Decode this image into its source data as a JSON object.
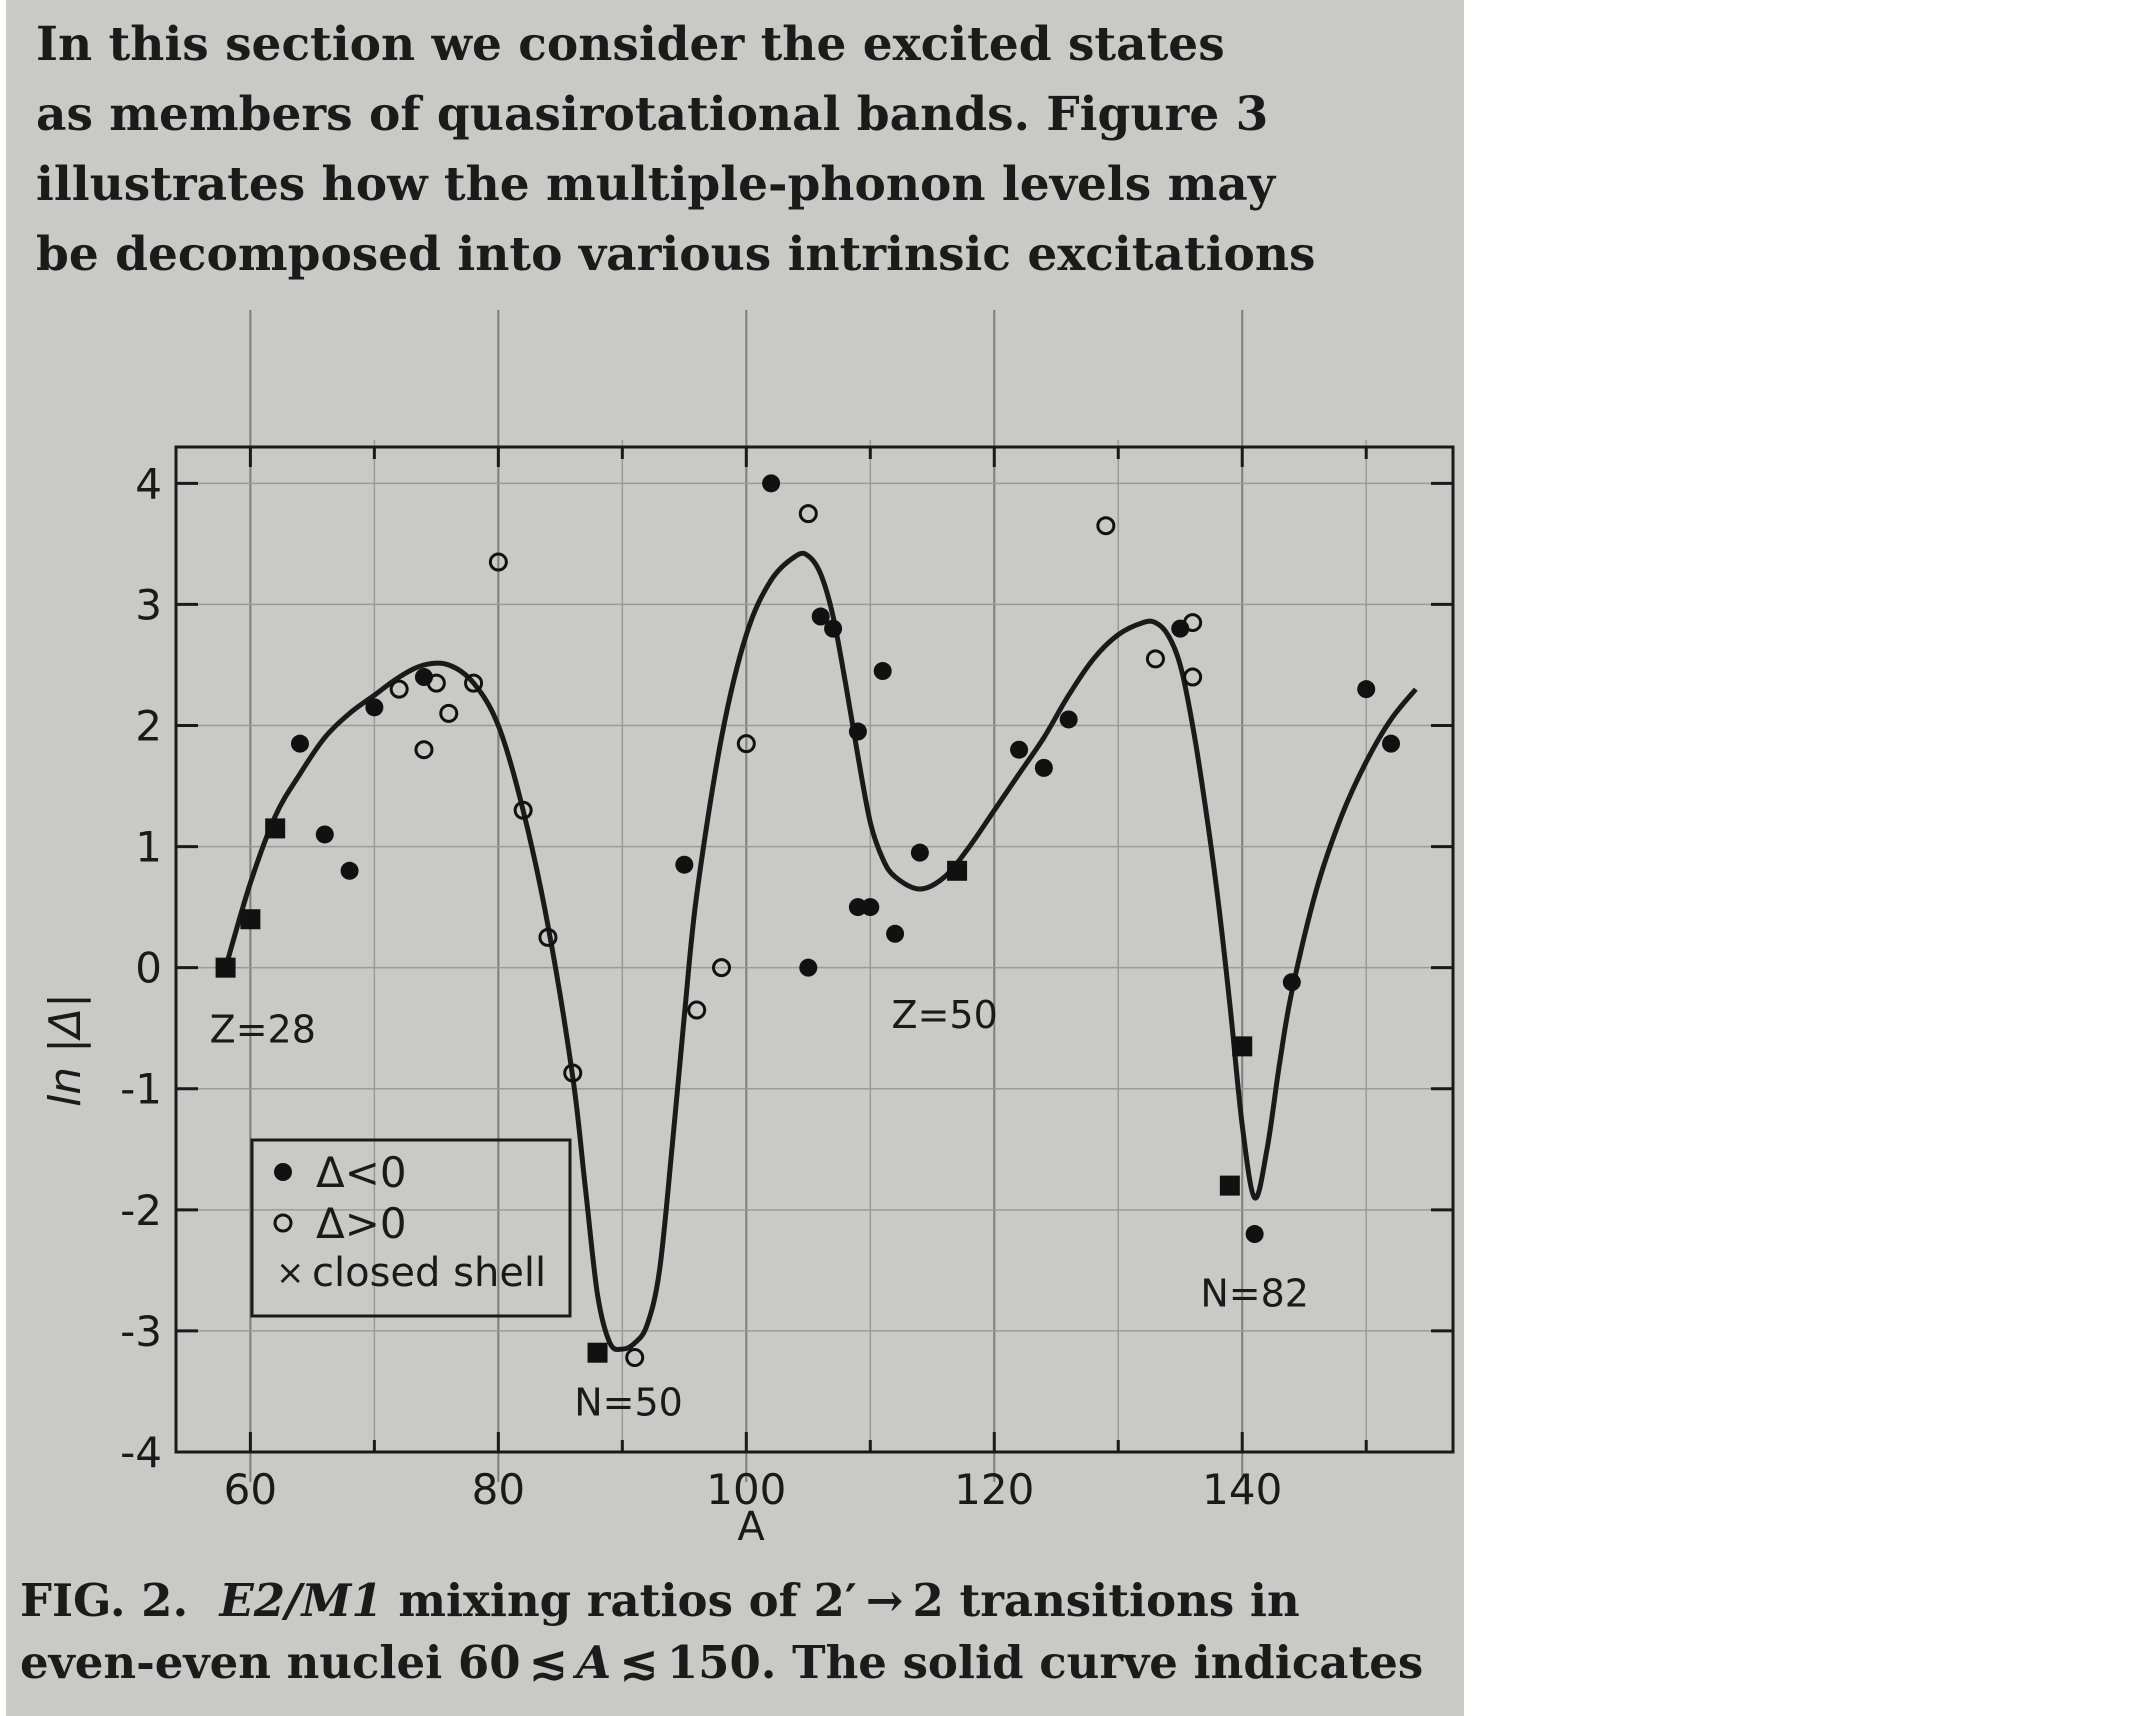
{
  "body_text": {
    "lines": [
      "In this section we consider the excited states",
      "as members of quasirotational bands.  Figure 3",
      "illustrates how the multiple-phonon levels may",
      "be decomposed into various intrinsic excitations"
    ]
  },
  "caption": {
    "label": "FIG. 2.",
    "title_em": "E2/M1",
    "title_rest": " mixing ratios of 2′ → 2 transitions in",
    "line2_start": "even-even nuclei 60 ≲ ",
    "line2_em": "A",
    "line2_end": " ≲ 150.  The solid curve indicates"
  },
  "chart_data": {
    "type": "scatter",
    "xlabel": "A",
    "ylabel": "ln |Δ|",
    "xlim": [
      54,
      157
    ],
    "ylim": [
      -4,
      4.3
    ],
    "x_ticks": [
      60,
      80,
      100,
      120,
      140
    ],
    "y_ticks": [
      4,
      3,
      2,
      1,
      0,
      -1,
      -2,
      -3,
      -4
    ],
    "grid": true,
    "legend": {
      "placement": "lower-left",
      "entries": [
        {
          "marker": "filled",
          "label": "Δ<0"
        },
        {
          "marker": "open",
          "label": "Δ>0"
        },
        {
          "marker": "cross",
          "label": "closed shell"
        }
      ]
    },
    "annotations": [
      {
        "text": "Z=28",
        "x": 61,
        "y": -0.62
      },
      {
        "text": "Z=50",
        "x": 116,
        "y": -0.5
      },
      {
        "text": "N=50",
        "x": 90.5,
        "y": -3.7
      },
      {
        "text": "N=82",
        "x": 141,
        "y": -2.8
      }
    ],
    "series": [
      {
        "name": "Δ<0",
        "marker": "filled",
        "x": [
          64,
          66,
          68,
          70,
          74,
          95,
          102,
          105,
          106,
          107,
          109,
          109,
          110,
          111,
          112,
          114,
          122,
          124,
          126,
          135,
          144,
          150,
          152
        ],
        "y": [
          1.85,
          1.1,
          0.8,
          2.15,
          2.4,
          0.85,
          4.0,
          0.0,
          2.9,
          2.8,
          0.5,
          1.95,
          0.5,
          2.45,
          0.28,
          0.95,
          1.8,
          1.65,
          2.05,
          2.8,
          -0.12,
          2.3,
          1.85
        ]
      },
      {
        "name": "Δ>0",
        "marker": "open",
        "x": [
          72,
          74,
          75,
          76,
          78,
          80,
          82,
          84,
          86,
          91,
          96,
          98,
          100,
          105,
          129,
          133,
          136,
          136
        ],
        "y": [
          2.3,
          1.8,
          2.35,
          2.1,
          2.35,
          3.35,
          1.3,
          0.25,
          -0.87,
          -3.22,
          -0.35,
          0.0,
          1.85,
          3.75,
          3.65,
          2.55,
          2.85,
          2.4
        ]
      },
      {
        "name": "closed shell",
        "marker": "square",
        "x": [
          58,
          60,
          62,
          88,
          117,
          139,
          140
        ],
        "y": [
          0.0,
          0.4,
          1.15,
          -3.18,
          0.8,
          -1.8,
          -0.65
        ]
      },
      {
        "marker": "filled",
        "x": [
          141
        ],
        "y": [
          -2.2
        ]
      }
    ],
    "curve": {
      "x": [
        58,
        60,
        62,
        64,
        66,
        68,
        70,
        72,
        74,
        76,
        78,
        80,
        82,
        84,
        86,
        87,
        88,
        89,
        90,
        91,
        92,
        93,
        94,
        95,
        96,
        98,
        100,
        102,
        104,
        105,
        106,
        107,
        108,
        109,
        110,
        111,
        112,
        114,
        116,
        118,
        120,
        122,
        124,
        126,
        128,
        130,
        132,
        133,
        134,
        135,
        136,
        137,
        138,
        139,
        140,
        141,
        142,
        143,
        144,
        146,
        148,
        150,
        152,
        154
      ],
      "y": [
        0.0,
        0.7,
        1.25,
        1.6,
        1.9,
        2.1,
        2.25,
        2.4,
        2.5,
        2.5,
        2.35,
        2.0,
        1.3,
        0.35,
        -0.9,
        -1.8,
        -2.7,
        -3.1,
        -3.15,
        -3.1,
        -2.95,
        -2.5,
        -1.5,
        -0.4,
        0.6,
        1.9,
        2.75,
        3.2,
        3.4,
        3.4,
        3.25,
        2.9,
        2.35,
        1.75,
        1.2,
        0.9,
        0.75,
        0.65,
        0.75,
        1.0,
        1.3,
        1.6,
        1.9,
        2.25,
        2.55,
        2.75,
        2.85,
        2.85,
        2.75,
        2.5,
        2.0,
        1.35,
        0.6,
        -0.3,
        -1.3,
        -1.9,
        -1.5,
        -0.8,
        -0.2,
        0.65,
        1.25,
        1.7,
        2.05,
        2.3
      ]
    }
  }
}
